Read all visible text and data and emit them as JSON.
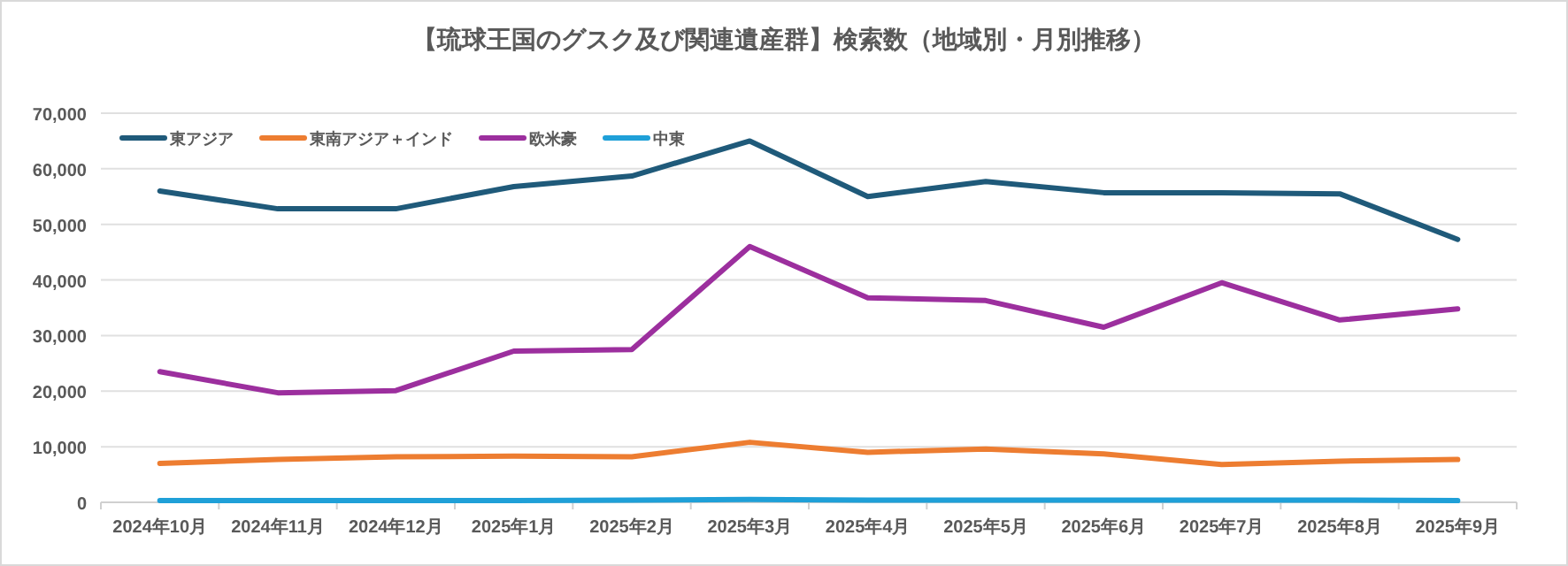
{
  "chart_data": {
    "type": "line",
    "title": "【琉球王国のグスク及び関連遺産群】検索数（地域別・月別推移）",
    "categories": [
      "2024年10月",
      "2024年11月",
      "2024年12月",
      "2025年1月",
      "2025年2月",
      "2025年3月",
      "2025年4月",
      "2025年5月",
      "2025年6月",
      "2025年7月",
      "2025年8月",
      "2025年9月"
    ],
    "series": [
      {
        "name": "東アジア",
        "color": "#1f5a7a",
        "values": [
          56000,
          52800,
          52800,
          56800,
          58700,
          65000,
          55000,
          57700,
          55700,
          55700,
          55500,
          47300
        ]
      },
      {
        "name": "東南アジア＋インド",
        "color": "#ed7d31",
        "values": [
          7000,
          7700,
          8200,
          8300,
          8200,
          10800,
          9000,
          9600,
          8700,
          6800,
          7400,
          7700
        ]
      },
      {
        "name": "欧米豪",
        "color": "#9c2f9e",
        "values": [
          23500,
          19700,
          20100,
          27200,
          27500,
          46000,
          36800,
          36300,
          31500,
          39500,
          32800,
          34800
        ]
      },
      {
        "name": "中東",
        "color": "#1fa0d8",
        "values": [
          300,
          300,
          300,
          300,
          400,
          500,
          400,
          400,
          400,
          400,
          400,
          300
        ]
      }
    ],
    "ylim": [
      0,
      70000
    ],
    "yticks": [
      {
        "value": 0,
        "label": "0"
      },
      {
        "value": 10000,
        "label": "10,000"
      },
      {
        "value": 20000,
        "label": "20,000"
      },
      {
        "value": 30000,
        "label": "30,000"
      },
      {
        "value": 40000,
        "label": "40,000"
      },
      {
        "value": 50000,
        "label": "50,000"
      },
      {
        "value": 60000,
        "label": "60,000"
      },
      {
        "value": 70000,
        "label": "70,000"
      }
    ],
    "grid": "y",
    "legend": "top left",
    "marker": "none",
    "line_style": "solid"
  }
}
